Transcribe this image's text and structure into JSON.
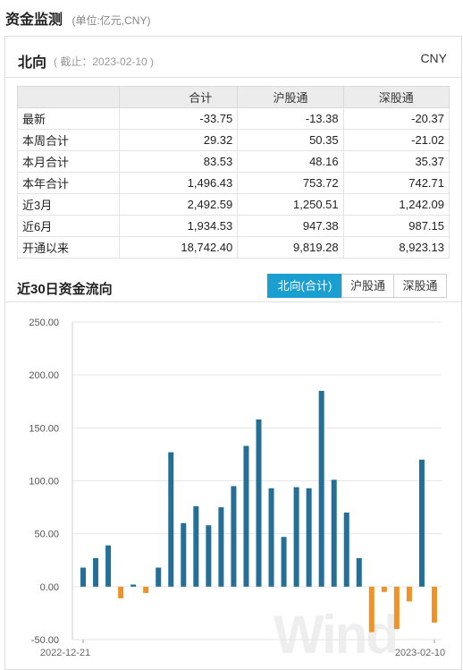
{
  "header": {
    "title": "资金监测",
    "unit": "(单位:亿元,CNY)"
  },
  "panel": {
    "name": "北向",
    "as_of": "( 截止：2023-02-10 )",
    "currency": "CNY"
  },
  "summary": {
    "columns": [
      "",
      "合计",
      "沪股通",
      "深股通"
    ],
    "rows": [
      {
        "label": "最新",
        "total": "-33.75",
        "sh": "-13.38",
        "sz": "-20.37"
      },
      {
        "label": "本周合计",
        "total": "29.32",
        "sh": "50.35",
        "sz": "-21.02"
      },
      {
        "label": "本月合计",
        "total": "83.53",
        "sh": "48.16",
        "sz": "35.37"
      },
      {
        "label": "本年合计",
        "total": "1,496.43",
        "sh": "753.72",
        "sz": "742.71"
      },
      {
        "label": "近3月",
        "total": "2,492.59",
        "sh": "1,250.51",
        "sz": "1,242.09"
      },
      {
        "label": "近6月",
        "total": "1,934.53",
        "sh": "947.38",
        "sz": "987.15"
      },
      {
        "label": "开通以来",
        "total": "18,742.40",
        "sh": "9,819.28",
        "sz": "8,923.13"
      }
    ]
  },
  "flow": {
    "title": "近30日资金流向",
    "tabs": [
      "北向(合计)",
      "沪股通",
      "深股通"
    ],
    "active_tab": 0
  },
  "chart_data": {
    "type": "bar",
    "ylim": [
      -50,
      250
    ],
    "yticks": [
      "250.00",
      "200.00",
      "150.00",
      "100.00",
      "50.00",
      "0.00",
      "-50.00"
    ],
    "x_first_label": "2022-12-21",
    "x_last_label": "2023-02-10",
    "values": [
      18,
      27,
      39,
      -11,
      2,
      -6,
      18,
      127,
      60,
      76,
      58,
      75,
      95,
      133,
      158,
      93,
      47,
      94,
      93,
      185,
      101,
      70,
      27,
      -43,
      -5,
      -40,
      -14,
      120,
      -34
    ],
    "positive_color": "#236f97",
    "negative_color": "#f0922a"
  },
  "watermark": "Wind"
}
